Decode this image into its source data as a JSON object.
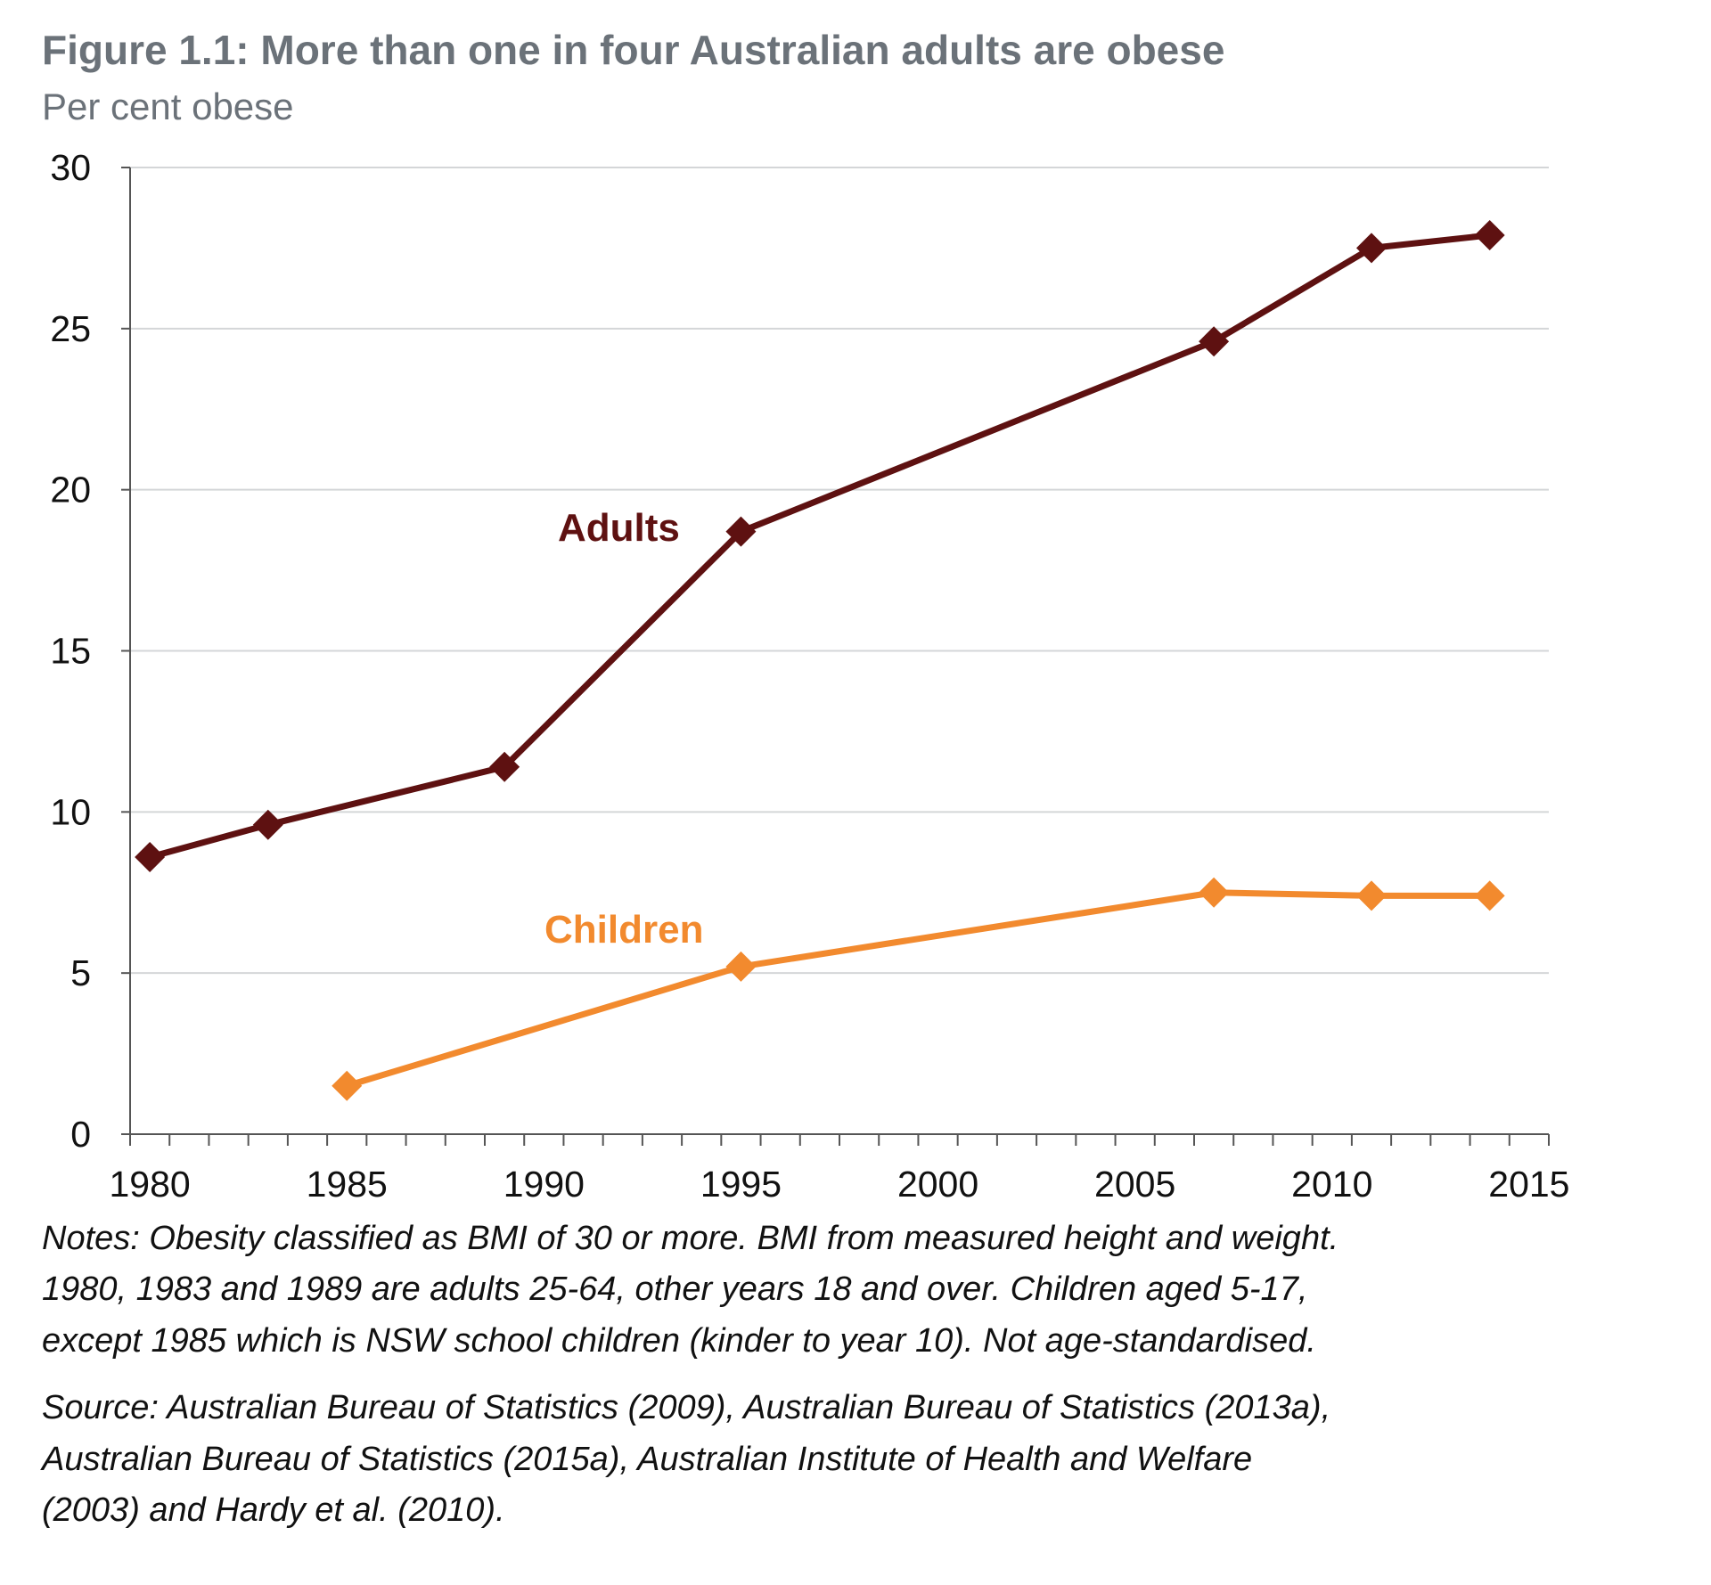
{
  "chart_data": {
    "type": "line",
    "title": "Figure 1.1: More than one in four Australian adults are obese",
    "ylabel": "Per cent obese",
    "xlabel": "",
    "ylim": [
      0,
      30
    ],
    "xlim": [
      1979.5,
      2015.5
    ],
    "yticks": [
      "0",
      "5",
      "10",
      "15",
      "20",
      "25",
      "30"
    ],
    "xticks": [
      "1980",
      "1985",
      "1990",
      "1995",
      "2000",
      "2005",
      "2010",
      "2015"
    ],
    "grid": true,
    "series": [
      {
        "name": "Adults",
        "color": "#5e1111",
        "marker": "diamond",
        "x": [
          1980,
          1983,
          1989,
          1995,
          2007,
          2011,
          2014
        ],
        "values": [
          8.6,
          9.6,
          11.4,
          18.7,
          24.6,
          27.5,
          27.9
        ]
      },
      {
        "name": "Children",
        "color": "#f28a2e",
        "marker": "diamond",
        "x": [
          1985,
          1995,
          2007,
          2011,
          2014
        ],
        "values": [
          1.5,
          5.2,
          7.5,
          7.4,
          7.4
        ]
      }
    ],
    "notes": [
      "Notes: Obesity classified as BMI of 30 or more. BMI from measured height and weight.",
      "1980, 1983 and 1989 are adults 25-64, other years 18 and over. Children aged 5-17,",
      "except 1985 which is NSW school children (kinder to year 10). Not age-standardised."
    ],
    "source": [
      "Source: Australian Bureau of Statistics (2009), Australian Bureau of Statistics (2013a),",
      "Australian Bureau of Statistics (2015a), Australian Institute of Health and Welfare",
      "(2003) and Hardy et al. (2010)."
    ]
  }
}
